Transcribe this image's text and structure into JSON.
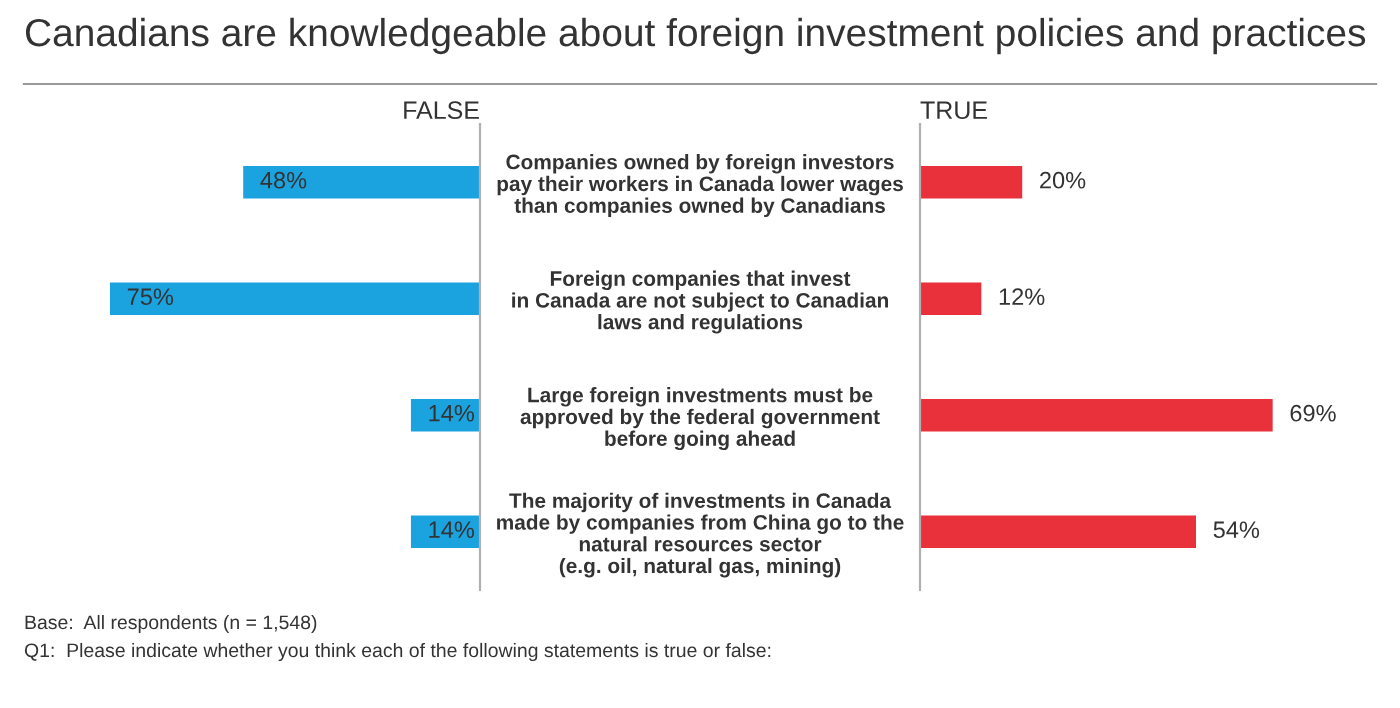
{
  "chart_data": [
    {
      "type": "bar",
      "orientation": "horizontal",
      "title": "Canadians are knowledgeable about foreign investment policies and practices",
      "categories": [
        "Companies owned by foreign investors\npay their workers in Canada lower wages\nthan companies owned by Canadians",
        "Foreign companies that invest\nin Canada are not subject to Canadian\nlaws and regulations",
        "Large foreign investments must be\napproved by the federal government\nbefore going ahead",
        "The majority of investments in Canada\nmade by companies from China go to the\nnatural resources sector\n(e.g. oil, natural gas, mining)"
      ],
      "series": [
        {
          "name": "FALSE",
          "color": "#1ba3e0",
          "values": [
            48,
            75,
            14,
            14
          ],
          "value_labels": [
            "48%",
            "75%",
            "14%",
            "14%"
          ]
        }
      ],
      "annotations": [
        "Base:  All respondents (n = 1,548)",
        "Q1:  Please indicate whether you think each of the following statements is true or false:"
      ]
    },
    {
      "type": "bar",
      "orientation": "horizontal",
      "categories": [
        null,
        null,
        null,
        null
      ],
      "series": [
        {
          "name": "TRUE",
          "color": "#e8313b",
          "values": [
            20,
            12,
            69,
            54
          ],
          "value_labels": [
            "20%",
            "12%",
            "69%",
            "54%"
          ]
        }
      ]
    }
  ]
}
